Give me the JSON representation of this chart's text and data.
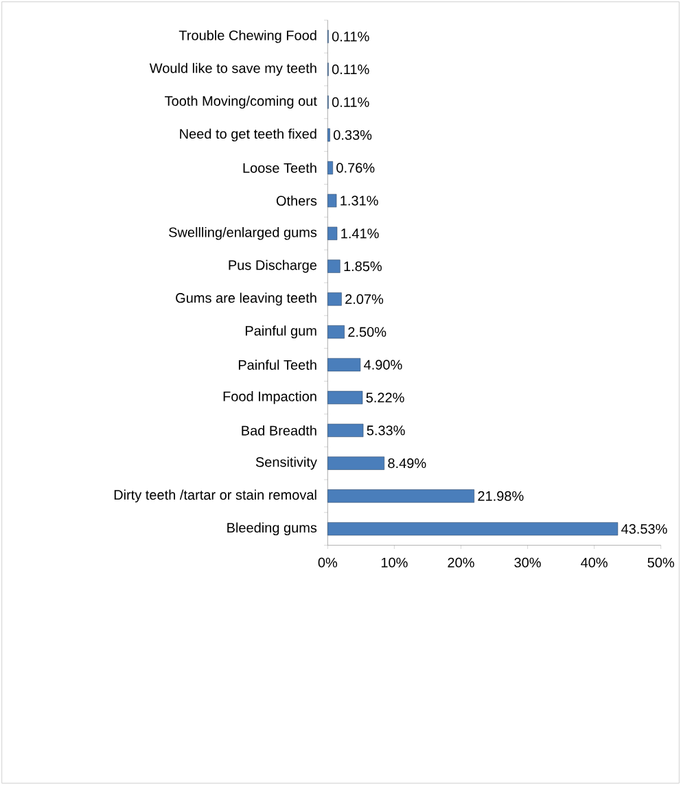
{
  "chart_data": {
    "type": "bar",
    "orientation": "horizontal",
    "categories": [
      "Trouble Chewing Food",
      "Would like to save my teeth",
      "Tooth Moving/coming out",
      "Need to get teeth fixed",
      "Loose Teeth",
      "Others",
      "Swellling/enlarged gums",
      "Pus Discharge",
      "Gums are leaving teeth",
      "Painful gum",
      "Painful Teeth",
      "Food Impaction",
      "Bad Breadth",
      "Sensitivity",
      "Dirty teeth /tartar or stain removal",
      "Bleeding gums"
    ],
    "values": [
      0.11,
      0.11,
      0.11,
      0.33,
      0.76,
      1.31,
      1.41,
      1.85,
      2.07,
      2.5,
      4.9,
      5.22,
      5.33,
      8.49,
      21.98,
      43.53
    ],
    "value_labels": [
      "0.11%",
      "0.11%",
      "0.11%",
      "0.33%",
      "0.76%",
      "1.31%",
      "1.41%",
      "1.85%",
      "2.07%",
      "2.50%",
      "4.90%",
      "5.22%",
      "5.33%",
      "8.49%",
      "21.98%",
      "43.53%"
    ],
    "color": "#4a7ebb",
    "xlim": [
      0,
      50
    ],
    "xticks": [
      {
        "value": 0,
        "label": "0%"
      },
      {
        "value": 10,
        "label": "10%"
      },
      {
        "value": 20,
        "label": "20%"
      },
      {
        "value": 30,
        "label": "30%"
      },
      {
        "value": 40,
        "label": "40%"
      },
      {
        "value": 50,
        "label": "50%"
      }
    ]
  }
}
